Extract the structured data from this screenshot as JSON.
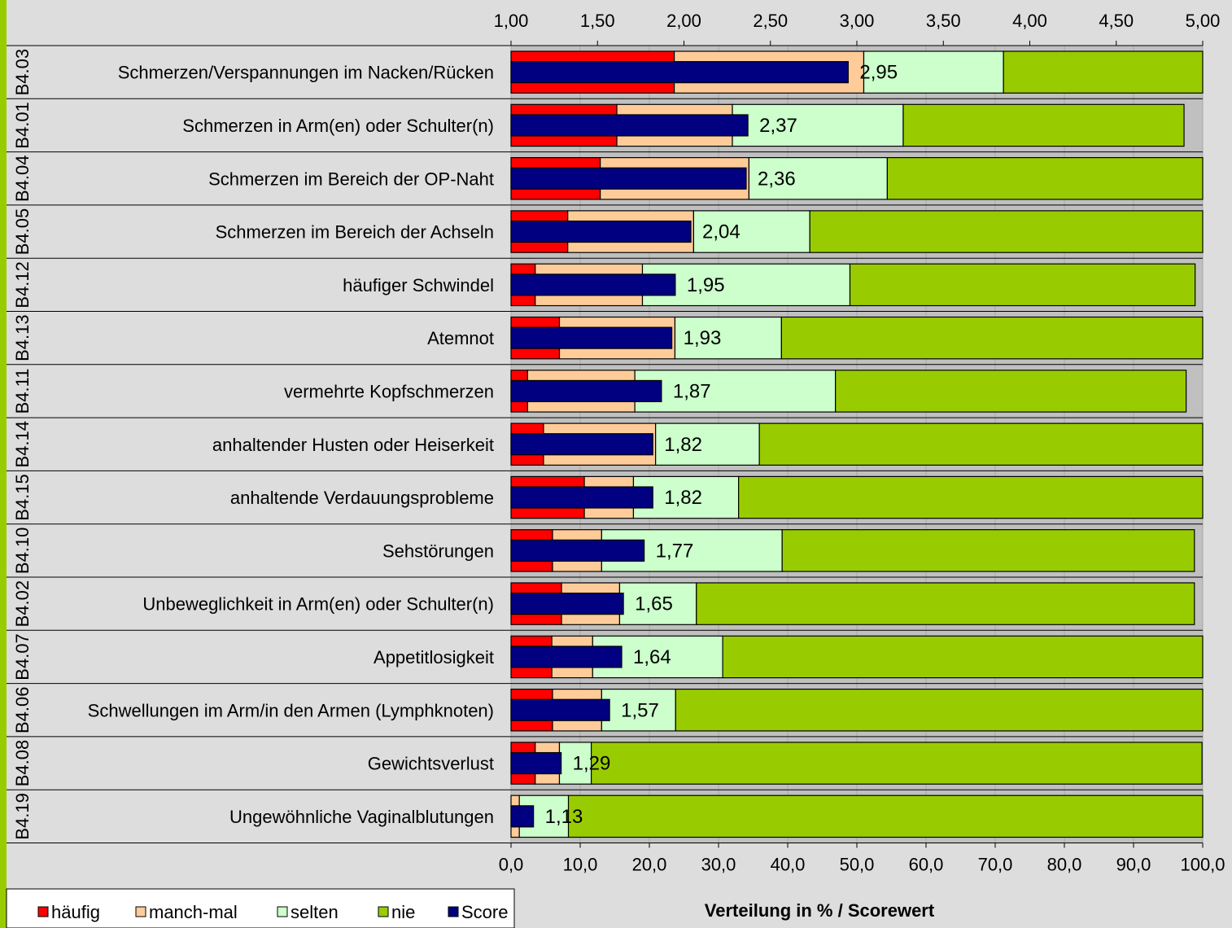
{
  "chart_data": {
    "type": "bar",
    "xlabel": "Verteilung in % / Scorewert",
    "axis_top": {
      "range": [
        1,
        5
      ],
      "ticks": [
        "1,00",
        "1,50",
        "2,00",
        "2,50",
        "3,00",
        "3,50",
        "4,00",
        "4,50",
        "5,00"
      ]
    },
    "axis_bottom": {
      "range": [
        0,
        100
      ],
      "ticks": [
        "0,0",
        "10,0",
        "20,0",
        "30,0",
        "40,0",
        "50,0",
        "60,0",
        "70,0",
        "80,0",
        "90,0",
        "100,0"
      ]
    },
    "grid": true,
    "legend_position": "bottom-left",
    "series": [
      {
        "name": "häufig",
        "color": "#ff0000"
      },
      {
        "name": "manch-mal",
        "color": "#ffcc99"
      },
      {
        "name": "selten",
        "color": "#ccffcc"
      },
      {
        "name": "nie",
        "color": "#99cc00"
      },
      {
        "name": "Score",
        "color": "#000080"
      }
    ],
    "rows": [
      {
        "code": "B4.03",
        "label": "Schmerzen/Verspannungen im Nacken/Rücken",
        "haeufig": 23.6,
        "manchmal": 27.4,
        "selten": 20.2,
        "nie": 28.8,
        "score": 2.95,
        "score_label": "2,95"
      },
      {
        "code": "B4.01",
        "label": "Schmerzen in Arm(en) oder Schulter(n)",
        "haeufig": 15.3,
        "manchmal": 16.7,
        "selten": 24.7,
        "nie": 40.6,
        "score": 2.37,
        "score_label": "2,37"
      },
      {
        "code": "B4.04",
        "label": "Schmerzen im Bereich der OP-Naht",
        "haeufig": 12.9,
        "manchmal": 21.5,
        "selten": 20.0,
        "nie": 45.6,
        "score": 2.36,
        "score_label": "2,36"
      },
      {
        "code": "B4.05",
        "label": "Schmerzen im Bereich der Achseln",
        "haeufig": 8.2,
        "manchmal": 18.2,
        "selten": 16.8,
        "nie": 56.8,
        "score": 2.04,
        "score_label": "2,04"
      },
      {
        "code": "B4.12",
        "label": "häufiger Schwindel",
        "haeufig": 3.5,
        "manchmal": 15.5,
        "selten": 30.0,
        "nie": 49.9,
        "score": 1.95,
        "score_label": "1,95"
      },
      {
        "code": "B4.13",
        "label": "Atemnot",
        "haeufig": 7.0,
        "manchmal": 16.7,
        "selten": 15.4,
        "nie": 60.9,
        "score": 1.93,
        "score_label": "1,93"
      },
      {
        "code": "B4.11",
        "label": "vermehrte Kopfschmerzen",
        "haeufig": 2.4,
        "manchmal": 15.5,
        "selten": 29.0,
        "nie": 50.7,
        "score": 1.87,
        "score_label": "1,87"
      },
      {
        "code": "B4.14",
        "label": "anhaltender Husten oder Heiserkeit",
        "haeufig": 4.7,
        "manchmal": 16.2,
        "selten": 15.0,
        "nie": 64.1,
        "score": 1.82,
        "score_label": "1,82"
      },
      {
        "code": "B4.15",
        "label": "anhaltende Verdauungsprobleme",
        "haeufig": 10.6,
        "manchmal": 7.1,
        "selten": 15.2,
        "nie": 67.1,
        "score": 1.82,
        "score_label": "1,82"
      },
      {
        "code": "B4.10",
        "label": "Sehstörungen",
        "haeufig": 6.0,
        "manchmal": 7.1,
        "selten": 26.1,
        "nie": 59.6,
        "score": 1.77,
        "score_label": "1,77"
      },
      {
        "code": "B4.02",
        "label": "Unbeweglichkeit in Arm(en) oder Schulter(n)",
        "haeufig": 7.3,
        "manchmal": 8.4,
        "selten": 11.1,
        "nie": 72.0,
        "score": 1.65,
        "score_label": "1,65"
      },
      {
        "code": "B4.07",
        "label": "Appetitlosigkeit",
        "haeufig": 5.9,
        "manchmal": 5.9,
        "selten": 18.8,
        "nie": 69.4,
        "score": 1.64,
        "score_label": "1,64"
      },
      {
        "code": "B4.06",
        "label": "Schwellungen im Arm/in den Armen (Lymphknoten)",
        "haeufig": 6.0,
        "manchmal": 7.1,
        "selten": 10.7,
        "nie": 76.2,
        "score": 1.57,
        "score_label": "1,57"
      },
      {
        "code": "B4.08",
        "label": "Gewichtsverlust",
        "haeufig": 3.5,
        "manchmal": 3.5,
        "selten": 4.6,
        "nie": 88.3,
        "score": 1.29,
        "score_label": "1,29"
      },
      {
        "code": "B4.19",
        "label": "Ungewöhnliche Vaginalblutungen",
        "haeufig": 0.0,
        "manchmal": 1.2,
        "selten": 7.1,
        "nie": 91.7,
        "score": 1.13,
        "score_label": "1,13"
      }
    ]
  }
}
